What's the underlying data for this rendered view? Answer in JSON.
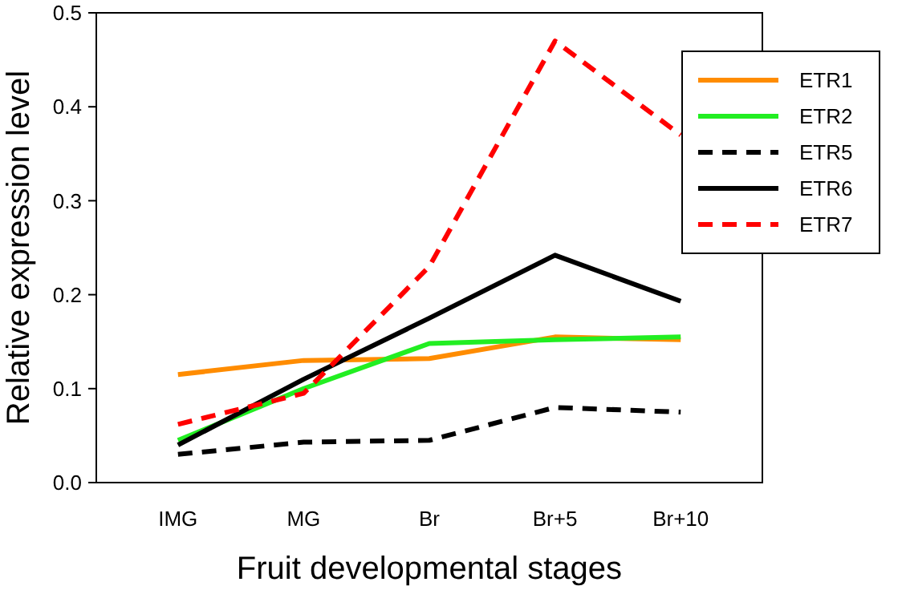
{
  "chart_data": {
    "type": "line",
    "xlabel": "Fruit developmental stages",
    "ylabel": "Relative expression level",
    "categories": [
      "IMG",
      "MG",
      "Br",
      "Br+5",
      "Br+10"
    ],
    "ylim": [
      0,
      0.5
    ],
    "yticks": [
      {
        "value": 0,
        "label": "0.0"
      },
      0.1,
      0.2,
      0.3,
      0.4,
      0.5
    ],
    "grid": false,
    "legend": "right",
    "marker": "none",
    "series": [
      {
        "name": "ETR1",
        "color": "#ff8c00",
        "line_style": "solid",
        "values": [
          0.115,
          0.13,
          0.132,
          0.155,
          0.152
        ]
      },
      {
        "name": "ETR2",
        "color": "#22ee22",
        "line_style": "solid",
        "values": [
          0.045,
          0.1,
          0.148,
          0.152,
          0.155
        ]
      },
      {
        "name": "ETR5",
        "color": "#000000",
        "line_style": "dashed",
        "values": [
          0.03,
          0.043,
          0.045,
          0.08,
          0.075
        ]
      },
      {
        "name": "ETR6",
        "color": "#000000",
        "line_style": "solid",
        "values": [
          0.04,
          0.11,
          0.175,
          0.242,
          0.193
        ]
      },
      {
        "name": "ETR7",
        "color": "#ff0000",
        "line_style": "dashed",
        "values": [
          0.062,
          0.095,
          0.23,
          0.47,
          0.37
        ]
      }
    ]
  }
}
